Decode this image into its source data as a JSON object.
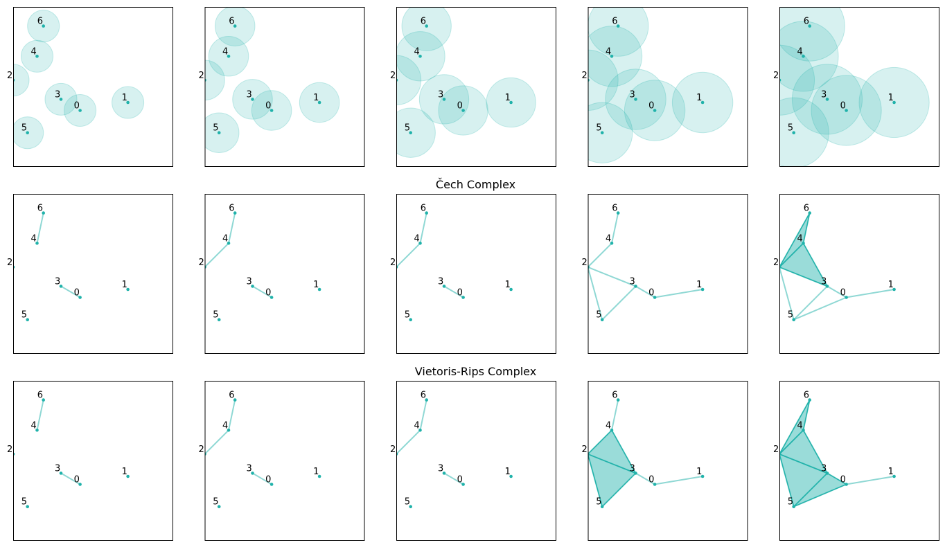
{
  "colors": {
    "accent": "#20b2aa",
    "ball_fill": "#20b2aa",
    "point": "#20b2aa",
    "edge": "#20b2aa",
    "triangle": "#20b2aa",
    "frame": "#000000"
  },
  "titles": {
    "cech": "Čech Complex",
    "vietoris_rips": "Vietoris-Rips Complex"
  },
  "chart_data": {
    "type": "simplicial-complex-filtration",
    "columns": 5,
    "xlim": [
      0.0,
      1.0
    ],
    "ylim": [
      0.0,
      1.0
    ],
    "points": [
      {
        "label": "0",
        "x": 0.42,
        "y": 0.35
      },
      {
        "label": "1",
        "x": 0.72,
        "y": 0.4
      },
      {
        "label": "2",
        "x": 0.0,
        "y": 0.54
      },
      {
        "label": "3",
        "x": 0.3,
        "y": 0.42
      },
      {
        "label": "4",
        "x": 0.15,
        "y": 0.69
      },
      {
        "label": "5",
        "x": 0.09,
        "y": 0.21
      },
      {
        "label": "6",
        "x": 0.19,
        "y": 0.88
      }
    ],
    "ball_radii": [
      0.1,
      0.125,
      0.155,
      0.19,
      0.22
    ],
    "cech": [
      {
        "edges": [
          [
            3,
            0
          ],
          [
            6,
            4
          ]
        ],
        "triangles": []
      },
      {
        "edges": [
          [
            3,
            0
          ],
          [
            6,
            4
          ],
          [
            4,
            2
          ]
        ],
        "triangles": []
      },
      {
        "edges": [
          [
            3,
            0
          ],
          [
            6,
            4
          ],
          [
            4,
            2
          ]
        ],
        "triangles": []
      },
      {
        "edges": [
          [
            3,
            0
          ],
          [
            6,
            4
          ],
          [
            4,
            2
          ],
          [
            0,
            1
          ],
          [
            2,
            3
          ],
          [
            2,
            5
          ],
          [
            5,
            3
          ]
        ],
        "triangles": []
      },
      {
        "edges": [
          [
            3,
            0
          ],
          [
            6,
            4
          ],
          [
            4,
            2
          ],
          [
            0,
            1
          ],
          [
            2,
            3
          ],
          [
            2,
            5
          ],
          [
            5,
            3
          ],
          [
            2,
            6
          ],
          [
            4,
            3
          ],
          [
            5,
            0
          ]
        ],
        "triangles": [
          [
            2,
            4,
            6
          ],
          [
            2,
            4,
            3
          ]
        ]
      }
    ],
    "vietoris_rips": [
      {
        "edges": [
          [
            3,
            0
          ],
          [
            6,
            4
          ]
        ],
        "triangles": []
      },
      {
        "edges": [
          [
            3,
            0
          ],
          [
            6,
            4
          ],
          [
            4,
            2
          ]
        ],
        "triangles": []
      },
      {
        "edges": [
          [
            3,
            0
          ],
          [
            6,
            4
          ],
          [
            4,
            2
          ]
        ],
        "triangles": []
      },
      {
        "edges": [
          [
            3,
            0
          ],
          [
            6,
            4
          ],
          [
            4,
            2
          ],
          [
            0,
            1
          ],
          [
            2,
            3
          ],
          [
            2,
            5
          ],
          [
            5,
            3
          ],
          [
            4,
            3
          ]
        ],
        "triangles": [
          [
            2,
            4,
            3
          ],
          [
            2,
            3,
            5
          ]
        ]
      },
      {
        "edges": [
          [
            3,
            0
          ],
          [
            6,
            4
          ],
          [
            4,
            2
          ],
          [
            0,
            1
          ],
          [
            2,
            3
          ],
          [
            2,
            5
          ],
          [
            5,
            3
          ],
          [
            4,
            3
          ],
          [
            2,
            6
          ],
          [
            5,
            0
          ]
        ],
        "triangles": [
          [
            2,
            4,
            6
          ],
          [
            2,
            4,
            3
          ],
          [
            2,
            3,
            5
          ],
          [
            5,
            3,
            0
          ]
        ]
      }
    ]
  }
}
